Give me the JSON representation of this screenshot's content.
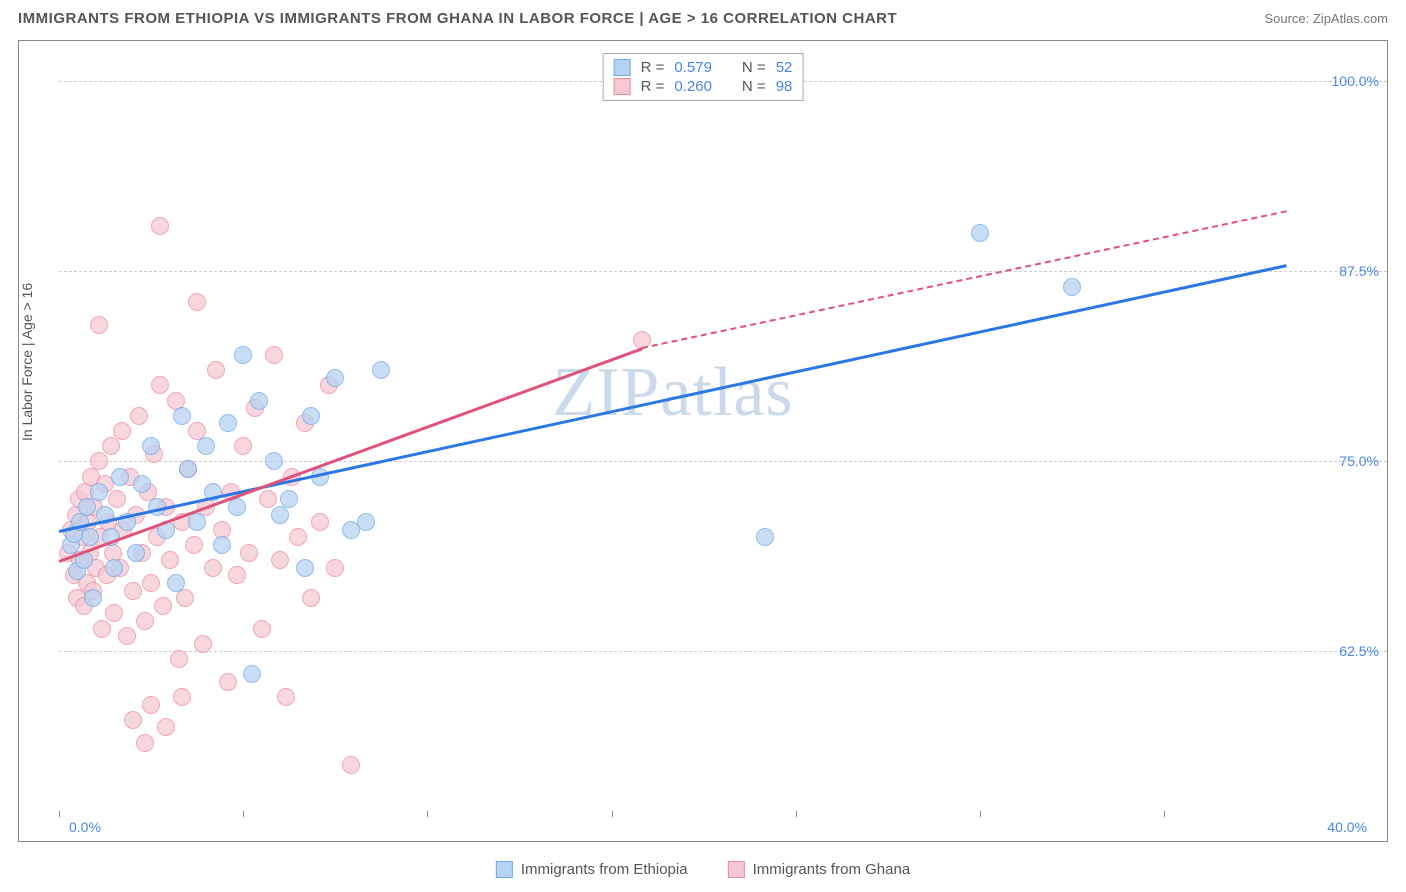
{
  "title": "IMMIGRANTS FROM ETHIOPIA VS IMMIGRANTS FROM GHANA IN LABOR FORCE | AGE > 16 CORRELATION CHART",
  "source": "Source: ZipAtlas.com",
  "watermark": "ZIPatlas",
  "chart": {
    "type": "scatter",
    "y_axis_title": "In Labor Force | Age > 16",
    "x_range": [
      0,
      40
    ],
    "y_range": [
      52,
      102
    ],
    "x_min_label": "0.0%",
    "x_max_label": "40.0%",
    "y_ticks": [
      62.5,
      75.0,
      87.5,
      100.0
    ],
    "y_tick_labels": [
      "62.5%",
      "75.0%",
      "87.5%",
      "100.0%"
    ],
    "x_tick_positions": [
      0,
      6,
      12,
      18,
      24,
      30,
      36
    ],
    "grid_color": "#cccccc",
    "background": "#ffffff",
    "axis_color": "#888888",
    "tick_label_color": "#4a86e8"
  },
  "series": [
    {
      "name": "Immigrants from Ethiopia",
      "fill": "#b7d3f2",
      "stroke": "#6fa8e8",
      "line_color": "#2b78e4",
      "line_dash": "solid",
      "R_label": "R =",
      "R": "0.579",
      "N_label": "N =",
      "N": "52",
      "trend": {
        "x1": 0,
        "y1": 70.5,
        "x2": 40,
        "y2": 88.0
      },
      "points": [
        [
          0.4,
          69.5
        ],
        [
          0.5,
          70.2
        ],
        [
          0.6,
          67.8
        ],
        [
          0.7,
          71.0
        ],
        [
          0.8,
          68.5
        ],
        [
          0.9,
          72.0
        ],
        [
          1.0,
          70.0
        ],
        [
          1.1,
          66.0
        ],
        [
          1.3,
          73.0
        ],
        [
          1.5,
          71.5
        ],
        [
          1.7,
          70.0
        ],
        [
          1.8,
          68.0
        ],
        [
          2.0,
          74.0
        ],
        [
          2.2,
          71.0
        ],
        [
          2.5,
          69.0
        ],
        [
          2.7,
          73.5
        ],
        [
          3.0,
          76.0
        ],
        [
          3.2,
          72.0
        ],
        [
          3.5,
          70.5
        ],
        [
          3.8,
          67.0
        ],
        [
          4.0,
          78.0
        ],
        [
          4.2,
          74.5
        ],
        [
          4.5,
          71.0
        ],
        [
          4.8,
          76.0
        ],
        [
          5.0,
          73.0
        ],
        [
          5.3,
          69.5
        ],
        [
          5.5,
          77.5
        ],
        [
          5.8,
          72.0
        ],
        [
          6.0,
          82.0
        ],
        [
          6.5,
          79.0
        ],
        [
          7.0,
          75.0
        ],
        [
          7.2,
          71.5
        ],
        [
          7.5,
          72.5
        ],
        [
          8.0,
          68.0
        ],
        [
          8.2,
          78.0
        ],
        [
          8.5,
          74.0
        ],
        [
          9.0,
          80.5
        ],
        [
          9.5,
          70.5
        ],
        [
          10.0,
          71.0
        ],
        [
          10.5,
          81.0
        ],
        [
          6.3,
          61.0
        ],
        [
          23.0,
          70.0
        ],
        [
          30.0,
          90.0
        ],
        [
          33.0,
          86.5
        ]
      ]
    },
    {
      "name": "Immigrants from Ghana",
      "fill": "#f5c9d3",
      "stroke": "#e88ba3",
      "line_color": "#e0527a",
      "line_dash": "solid_then_dash",
      "R_label": "R =",
      "R": "0.260",
      "N_label": "N =",
      "N": "98",
      "trend_solid": {
        "x1": 0,
        "y1": 68.5,
        "x2": 19,
        "y2": 82.5
      },
      "trend_dash": {
        "x1": 19,
        "y1": 82.5,
        "x2": 40,
        "y2": 91.5
      },
      "points": [
        [
          0.3,
          69.0
        ],
        [
          0.4,
          70.5
        ],
        [
          0.5,
          67.5
        ],
        [
          0.55,
          71.5
        ],
        [
          0.6,
          66.0
        ],
        [
          0.65,
          72.5
        ],
        [
          0.7,
          68.5
        ],
        [
          0.75,
          70.0
        ],
        [
          0.8,
          65.5
        ],
        [
          0.85,
          73.0
        ],
        [
          0.9,
          67.0
        ],
        [
          0.95,
          71.0
        ],
        [
          1.0,
          69.0
        ],
        [
          1.05,
          74.0
        ],
        [
          1.1,
          66.5
        ],
        [
          1.15,
          72.0
        ],
        [
          1.2,
          68.0
        ],
        [
          1.3,
          75.0
        ],
        [
          1.35,
          70.0
        ],
        [
          1.4,
          64.0
        ],
        [
          1.5,
          73.5
        ],
        [
          1.55,
          67.5
        ],
        [
          1.6,
          71.0
        ],
        [
          1.7,
          76.0
        ],
        [
          1.75,
          69.0
        ],
        [
          1.8,
          65.0
        ],
        [
          1.9,
          72.5
        ],
        [
          2.0,
          68.0
        ],
        [
          2.05,
          77.0
        ],
        [
          2.1,
          70.5
        ],
        [
          2.2,
          63.5
        ],
        [
          2.3,
          74.0
        ],
        [
          2.4,
          66.5
        ],
        [
          2.5,
          71.5
        ],
        [
          2.6,
          78.0
        ],
        [
          2.7,
          69.0
        ],
        [
          2.8,
          64.5
        ],
        [
          2.9,
          73.0
        ],
        [
          3.0,
          67.0
        ],
        [
          3.1,
          75.5
        ],
        [
          3.2,
          70.0
        ],
        [
          3.3,
          80.0
        ],
        [
          3.4,
          65.5
        ],
        [
          3.5,
          72.0
        ],
        [
          3.6,
          68.5
        ],
        [
          3.8,
          79.0
        ],
        [
          3.9,
          62.0
        ],
        [
          4.0,
          71.0
        ],
        [
          4.1,
          66.0
        ],
        [
          4.2,
          74.5
        ],
        [
          4.4,
          69.5
        ],
        [
          4.5,
          77.0
        ],
        [
          4.7,
          63.0
        ],
        [
          4.8,
          72.0
        ],
        [
          5.0,
          68.0
        ],
        [
          5.1,
          81.0
        ],
        [
          5.3,
          70.5
        ],
        [
          5.5,
          60.5
        ],
        [
          5.6,
          73.0
        ],
        [
          5.8,
          67.5
        ],
        [
          6.0,
          76.0
        ],
        [
          6.2,
          69.0
        ],
        [
          6.4,
          78.5
        ],
        [
          6.6,
          64.0
        ],
        [
          6.8,
          72.5
        ],
        [
          7.0,
          82.0
        ],
        [
          7.2,
          68.5
        ],
        [
          7.4,
          59.5
        ],
        [
          7.6,
          74.0
        ],
        [
          7.8,
          70.0
        ],
        [
          8.0,
          77.5
        ],
        [
          8.2,
          66.0
        ],
        [
          8.5,
          71.0
        ],
        [
          8.8,
          80.0
        ],
        [
          9.0,
          68.0
        ],
        [
          2.4,
          58.0
        ],
        [
          3.0,
          59.0
        ],
        [
          3.5,
          57.5
        ],
        [
          4.0,
          59.5
        ],
        [
          2.8,
          56.5
        ],
        [
          3.3,
          90.5
        ],
        [
          4.5,
          85.5
        ],
        [
          1.3,
          84.0
        ],
        [
          9.5,
          55.0
        ],
        [
          19.0,
          83.0
        ]
      ]
    }
  ],
  "bottom_legend": {
    "items": [
      "Immigrants from Ethiopia",
      "Immigrants from Ghana"
    ]
  }
}
